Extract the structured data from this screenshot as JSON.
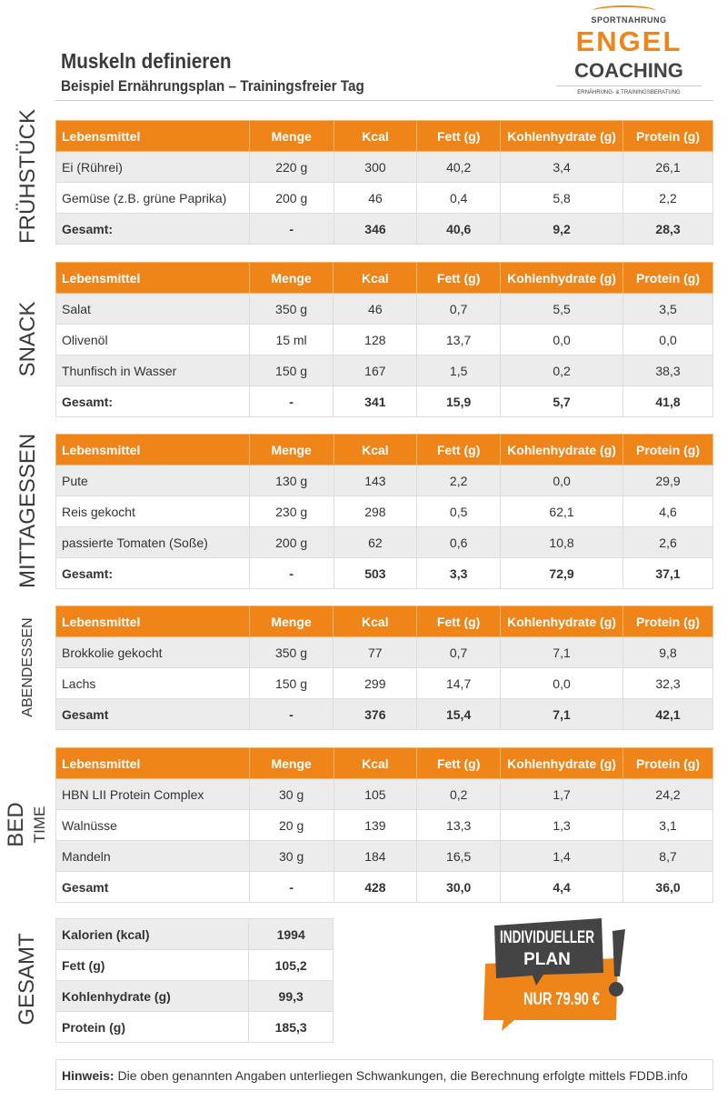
{
  "header": {
    "title": "Muskeln definieren",
    "subtitle": "Beispiel Ernährungsplan – Trainingsfreier Tag"
  },
  "logo": {
    "top": "SPORTNAHRUNG",
    "main": "ENGEL",
    "sub": "COACHING",
    "tagline": "ERNÄHRUNG- & TRAININGSBERATUNG"
  },
  "columns": [
    "Lebensmittel",
    "Menge",
    "Kcal",
    "Fett (g)",
    "Kohlenhydrate (g)",
    "Protein (g)"
  ],
  "meals": [
    {
      "label": "FRÜHSTÜCK",
      "rows": [
        [
          "Ei (Rührei)",
          "220 g",
          "300",
          "40,2",
          "3,4",
          "26,1"
        ],
        [
          "Gemüse (z.B. grüne Paprika)",
          "200 g",
          "46",
          "0,4",
          "5,8",
          "2,2"
        ],
        [
          "Gesamt:",
          "-",
          "346",
          "40,6",
          "9,2",
          "28,3"
        ]
      ]
    },
    {
      "label": "SNACK",
      "rows": [
        [
          "Salat",
          "350 g",
          "46",
          "0,7",
          "5,5",
          "3,5"
        ],
        [
          "Olivenöl",
          "15 ml",
          "128",
          "13,7",
          "0,0",
          "0,0"
        ],
        [
          "Thunfisch in Wasser",
          "150 g",
          "167",
          "1,5",
          "0,2",
          "38,3"
        ],
        [
          "Gesamt:",
          "-",
          "341",
          "15,9",
          "5,7",
          "41,8"
        ]
      ]
    },
    {
      "label": "MITTAGESSEN",
      "rows": [
        [
          "Pute",
          "130  g",
          "143",
          "2,2",
          "0,0",
          "29,9"
        ],
        [
          "Reis  gekocht",
          "230 g",
          "298",
          "0,5",
          "62,1",
          "4,6"
        ],
        [
          "passierte Tomaten (Soße)",
          "200 g",
          "62",
          "0,6",
          "10,8",
          "2,6"
        ],
        [
          "Gesamt:",
          "-",
          "503",
          "3,3",
          "72,9",
          "37,1"
        ]
      ]
    },
    {
      "label": "ABENDESSEN",
      "rows": [
        [
          "Brokkolie gekocht",
          "350 g",
          "77",
          "0,7",
          "7,1",
          "9,8"
        ],
        [
          "Lachs",
          "150 g",
          "299",
          "14,7",
          "0,0",
          "32,3"
        ],
        [
          "Gesamt",
          "-",
          "376",
          "15,4",
          "7,1",
          "42,1"
        ]
      ]
    },
    {
      "label": "BED",
      "label2": "TIME",
      "rows": [
        [
          "HBN LII Protein Complex",
          "30 g",
          "105",
          "0,2",
          "1,7",
          "24,2"
        ],
        [
          "Walnüsse",
          "20 g",
          "139",
          "13,3",
          "1,3",
          "3,1"
        ],
        [
          "Mandeln",
          "30 g",
          "184",
          "16,5",
          "1,4",
          "8,7"
        ],
        [
          "Gesamt",
          "-",
          "428",
          "30,0",
          "4,4",
          "36,0"
        ]
      ]
    }
  ],
  "total": {
    "label": "GESAMT",
    "rows": [
      [
        "Kalorien (kcal)",
        "1994"
      ],
      [
        "Fett (g)",
        "105,2"
      ],
      [
        "Kohlenhydrate (g)",
        "99,3"
      ],
      [
        "Protein (g)",
        "185,3"
      ]
    ]
  },
  "promo": {
    "line1": "INDIVIDUELLER",
    "line2": "PLAN",
    "price": "NUR 79.90 €"
  },
  "hint": {
    "label": "Hinweis:",
    "text": " Die oben genannten Angaben unterliegen Schwankungen, die Berechnung erfolgte mittels FDDB.info"
  },
  "colors": {
    "accent": "#ef8418",
    "dark": "#444444"
  }
}
